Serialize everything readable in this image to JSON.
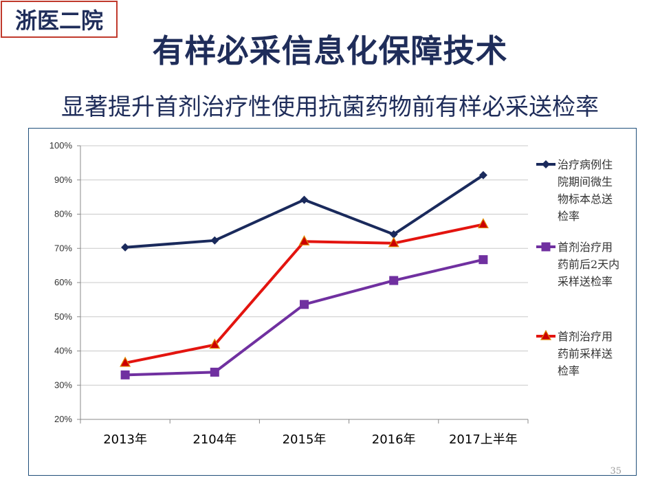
{
  "badge": "浙医二院",
  "title": "有样必采信息化保障技术",
  "subtitle": "显著提升首剂治疗性使用抗菌药物前有样必采送检率",
  "page_number": "35",
  "colors": {
    "title": "#1f2d5a",
    "badge_border": "#c0392b",
    "frame_border": "#1f4e79",
    "grid": "#c8c8c8"
  },
  "chart_data": {
    "type": "line",
    "title": "",
    "xlabel": "",
    "ylabel": "",
    "categories": [
      "2013年",
      "2104年",
      "2015年",
      "2016年",
      "2017上半年"
    ],
    "ylim": [
      20,
      100
    ],
    "y_ticks": [
      "20%",
      "30%",
      "40%",
      "50%",
      "60%",
      "70%",
      "80%",
      "90%",
      "100%"
    ],
    "grid": true,
    "legend_position": "right",
    "series": [
      {
        "name": "治疗病例住院期间微生物标本总送检率",
        "legend_lines": [
          "治疗病例住",
          "院期间微生",
          "物标本总送",
          "检率"
        ],
        "color": "#1a2a5c",
        "marker": "diamond",
        "values": [
          70.3,
          72.3,
          84.2,
          74.1,
          91.4
        ]
      },
      {
        "name": "首剂治疗用药前后2天内采样送检率",
        "legend_lines": [
          "首剂治疗用",
          "药前后2天内",
          "采样送检率"
        ],
        "color": "#7030a0",
        "marker": "square",
        "values": [
          33.0,
          33.8,
          53.6,
          60.6,
          66.7
        ]
      },
      {
        "name": "首剂治疗用药前采样送检率",
        "legend_lines": [
          "首剂治疗用",
          "药前采样送",
          "检率"
        ],
        "color": "#e3140f",
        "marker": "triangle",
        "values": [
          36.5,
          41.8,
          72.0,
          71.5,
          77.0
        ]
      }
    ]
  }
}
